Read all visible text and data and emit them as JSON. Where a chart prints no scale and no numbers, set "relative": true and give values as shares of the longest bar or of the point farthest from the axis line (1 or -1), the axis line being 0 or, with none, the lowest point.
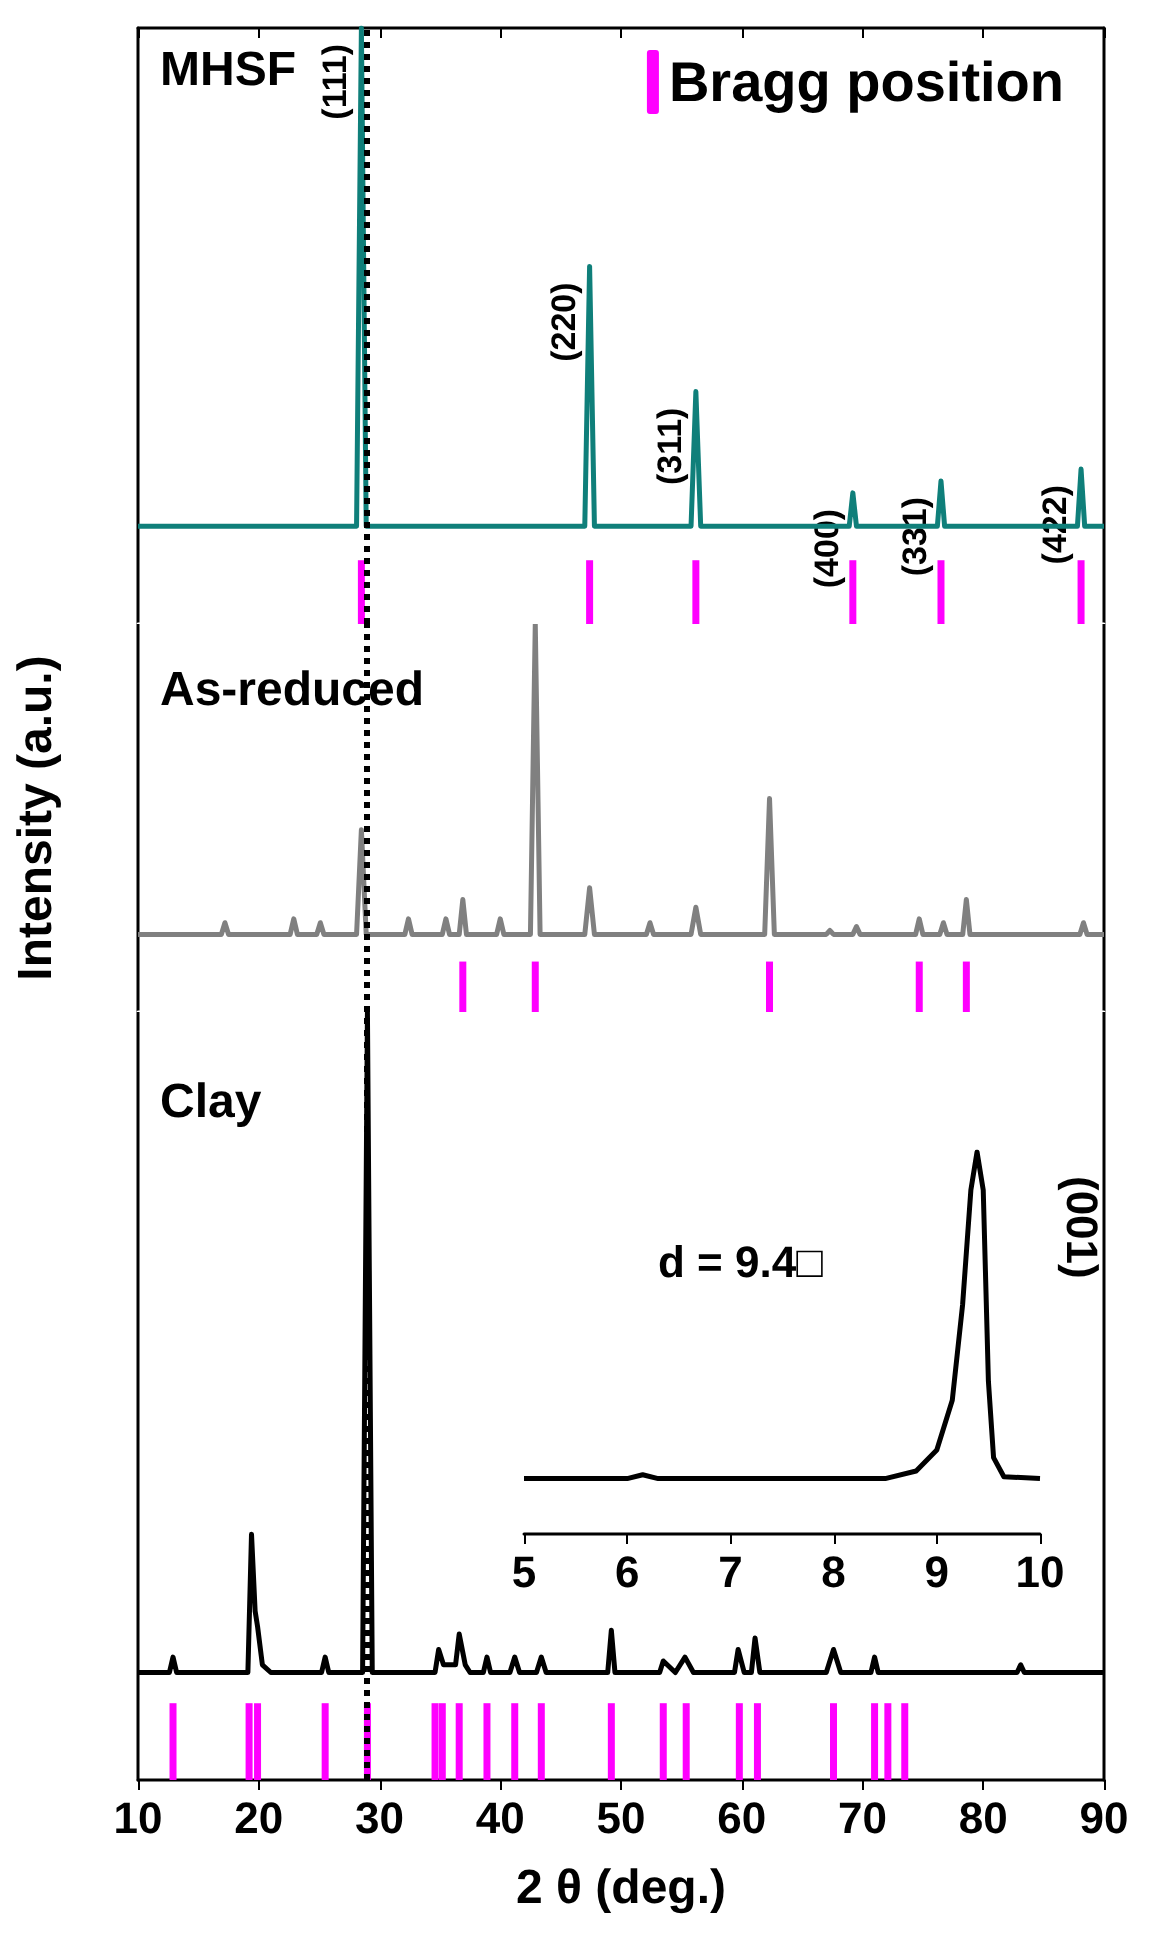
{
  "chart_data": [
    {
      "type": "line",
      "title": "MHSF",
      "relative": true,
      "xlim": [
        10,
        90
      ],
      "xticks": [
        10,
        20,
        30,
        40,
        50,
        60,
        70,
        80,
        90
      ],
      "tick_labels": false,
      "grid": false,
      "legend": "top right",
      "series": [
        {
          "color": "#0f7f7a",
          "x": [
            10,
            28.1,
            28.5,
            28.9,
            47.0,
            47.4,
            47.8,
            55.8,
            56.2,
            56.6,
            68.9,
            69.2,
            69.5,
            76.2,
            76.5,
            76.8,
            87.8,
            88.1,
            88.4,
            90
          ],
          "values": [
            0.164,
            0.164,
            1,
            0.164,
            0.164,
            0.6,
            0.164,
            0.164,
            0.39,
            0.164,
            0.164,
            0.22,
            0.164,
            0.164,
            0.24,
            0.164,
            0.164,
            0.26,
            0.164,
            0.164
          ]
        },
        {
          "type": "bar",
          "name": "Bragg position",
          "color": "#ff00ff",
          "x": [
            28.5,
            47.4,
            56.2,
            69.2,
            76.5,
            88.1
          ],
          "values": [
            0.107,
            0.107,
            0.107,
            0.107,
            0.107,
            0.107
          ]
        }
      ],
      "ref_lines": [
        {
          "axis": "x",
          "value": 29,
          "line_style": "dotted",
          "color": "#000000"
        }
      ],
      "annotations": [
        {
          "text": "(111)",
          "x": 28.5,
          "y": 1
        },
        {
          "text": "(220)",
          "x": 47.4,
          "y": 0.6
        },
        {
          "text": "(311)",
          "x": 56.2,
          "y": 0.39
        },
        {
          "text": "(400)",
          "x": 69.2,
          "y": 0.22
        },
        {
          "text": "(331)",
          "x": 76.5,
          "y": 0.24
        },
        {
          "text": "(422)",
          "x": 88.1,
          "y": 0.26
        }
      ]
    },
    {
      "type": "line",
      "title": "As-reduced",
      "ylabel": "Intensity (a.u.)",
      "relative": true,
      "xlim": [
        10,
        90
      ],
      "tick_labels": false,
      "grid": false,
      "series": [
        {
          "color": "#808080",
          "x": [
            10,
            16.9,
            17.2,
            17.5,
            22.6,
            22.9,
            23.2,
            24.8,
            25.1,
            25.4,
            28.1,
            28.5,
            28.9,
            32.1,
            32.4,
            32.7,
            35.2,
            35.5,
            35.8,
            36.6,
            36.9,
            37.2,
            39.7,
            40.0,
            40.3,
            42.5,
            42.9,
            43.3,
            47.0,
            47.4,
            47.8,
            52.1,
            52.4,
            52.7,
            55.8,
            56.2,
            56.6,
            61.9,
            62.3,
            62.7,
            67.0,
            67.3,
            67.6,
            69.2,
            69.5,
            69.8,
            74.4,
            74.7,
            75.0,
            76.4,
            76.7,
            77.0,
            78.3,
            78.6,
            78.9,
            88.0,
            88.3,
            88.6,
            90
          ],
          "values": [
            0.2,
            0.2,
            0.23,
            0.2,
            0.2,
            0.24,
            0.2,
            0.2,
            0.23,
            0.2,
            0.2,
            0.47,
            0.2,
            0.2,
            0.24,
            0.2,
            0.2,
            0.24,
            0.2,
            0.2,
            0.29,
            0.2,
            0.2,
            0.24,
            0.2,
            0.2,
            1,
            0.2,
            0.2,
            0.32,
            0.2,
            0.2,
            0.23,
            0.2,
            0.2,
            0.27,
            0.2,
            0.2,
            0.55,
            0.2,
            0.2,
            0.21,
            0.2,
            0.2,
            0.22,
            0.2,
            0.2,
            0.24,
            0.2,
            0.2,
            0.23,
            0.2,
            0.2,
            0.29,
            0.2,
            0.2,
            0.23,
            0.2,
            0.2
          ]
        },
        {
          "type": "bar",
          "color": "#ff00ff",
          "x": [
            36.9,
            42.9,
            62.3,
            74.7,
            78.6
          ],
          "values": [
            0.13,
            0.13,
            0.13,
            0.13,
            0.13
          ]
        }
      ],
      "ref_lines": [
        {
          "axis": "x",
          "value": 29,
          "line_style": "dotted",
          "color": "#000000"
        }
      ]
    },
    {
      "type": "line",
      "title": "Clay",
      "xlabel": "2 θ (deg.)",
      "relative": true,
      "xlim": [
        10,
        90
      ],
      "xticks": [
        10,
        20,
        30,
        40,
        50,
        60,
        70,
        80,
        90
      ],
      "tick_labels": "x",
      "grid": false,
      "series": [
        {
          "color": "#000000",
          "x": [
            10,
            12.6,
            12.9,
            13.2,
            19.1,
            19.4,
            19.7,
            19.9,
            20.3,
            21,
            25.2,
            25.5,
            25.8,
            28.6,
            29.0,
            29.4,
            34.6,
            34.9,
            35.3,
            36.3,
            36.6,
            37.1,
            37.5,
            38.6,
            38.9,
            39.2,
            40.8,
            41.2,
            41.6,
            43.0,
            43.4,
            43.8,
            48.9,
            49.2,
            49.5,
            53.2,
            53.5,
            54.5,
            55.3,
            56,
            59.4,
            59.7,
            60.2,
            60.8,
            61.1,
            61.5,
            67.0,
            67.6,
            68.2,
            70.7,
            71.0,
            71.3,
            82.8,
            83.1,
            83.4,
            90
          ],
          "values": [
            0.14,
            0.14,
            0.16,
            0.14,
            0.14,
            0.32,
            0.22,
            0.2,
            0.15,
            0.14,
            0.14,
            0.16,
            0.14,
            0.14,
            1,
            0.14,
            0.14,
            0.17,
            0.15,
            0.15,
            0.19,
            0.15,
            0.14,
            0.14,
            0.16,
            0.14,
            0.14,
            0.16,
            0.14,
            0.14,
            0.16,
            0.14,
            0.14,
            0.195,
            0.14,
            0.14,
            0.155,
            0.14,
            0.16,
            0.14,
            0.14,
            0.17,
            0.14,
            0.14,
            0.185,
            0.14,
            0.14,
            0.17,
            0.14,
            0.14,
            0.16,
            0.14,
            0.14,
            0.15,
            0.14,
            0.14
          ]
        },
        {
          "type": "bar",
          "color": "#ff00ff",
          "x": [
            12.9,
            19.2,
            19.9,
            25.5,
            29.0,
            34.6,
            35.2,
            36.6,
            38.9,
            41.2,
            43.4,
            49.2,
            53.5,
            55.4,
            59.8,
            61.3,
            67.6,
            71.0,
            72.1,
            73.5
          ],
          "values": [
            0.1,
            0.1,
            0.1,
            0.1,
            0.1,
            0.1,
            0.1,
            0.1,
            0.1,
            0.1,
            0.1,
            0.1,
            0.1,
            0.1,
            0.1,
            0.1,
            0.1,
            0.1,
            0.1,
            0.1
          ]
        }
      ],
      "ref_lines": [
        {
          "axis": "x",
          "value": 29,
          "line_style": "dotted",
          "color": "#000000"
        }
      ]
    },
    {
      "type": "line",
      "relative": true,
      "xlim": [
        5,
        10
      ],
      "xticks": [
        5,
        6,
        7,
        8,
        9,
        10
      ],
      "tick_labels": "x",
      "grid": false,
      "series": [
        {
          "color": "#000000",
          "x": [
            5,
            6.0,
            6.15,
            6.3,
            8.5,
            8.8,
            9.0,
            9.15,
            9.25,
            9.33,
            9.39,
            9.45,
            9.5,
            9.55,
            9.65,
            10
          ],
          "values": [
            0.145,
            0.145,
            0.155,
            0.145,
            0.145,
            0.165,
            0.22,
            0.35,
            0.6,
            0.9,
            1,
            0.9,
            0.4,
            0.2,
            0.15,
            0.145
          ]
        }
      ],
      "annotations": [
        "d = 9.4□",
        "(001)"
      ]
    }
  ]
}
